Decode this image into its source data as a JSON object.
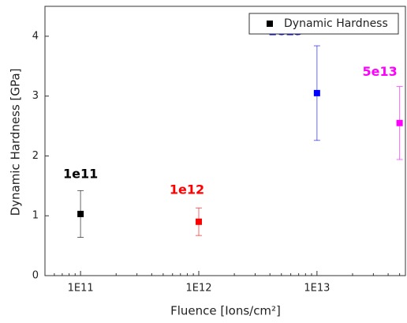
{
  "chart_data": {
    "type": "scatter",
    "x_label": "Fluence [Ions/cm²]",
    "y_label": "Dynamic Hardness [GPa]",
    "xscale": "log",
    "xlim": [
      50000000000.0,
      56000000000000.0
    ],
    "ylim": [
      0,
      4.5
    ],
    "xticks": [
      {
        "value": 100000000000.0,
        "label": "1E11"
      },
      {
        "value": 1000000000000.0,
        "label": "1E12"
      },
      {
        "value": 10000000000000.0,
        "label": "1E13"
      }
    ],
    "yticks": [
      0,
      1,
      2,
      3,
      4
    ],
    "legend": "upper right",
    "series": [
      {
        "name": "Dynamic Hardness",
        "color": "#000000",
        "x": [
          100000000000.0,
          1000000000000.0,
          10000000000000.0,
          50000000000000.0
        ],
        "values": [
          1.03,
          0.9,
          3.05,
          2.55
        ],
        "errors": [
          0.39,
          0.23,
          0.79,
          0.61
        ],
        "colors": [
          "#000000",
          "#ff0000",
          "#0000ff",
          "#ff00ff"
        ],
        "annotations": [
          "1e11",
          "1e12",
          "1e13",
          "5e13"
        ]
      }
    ]
  }
}
